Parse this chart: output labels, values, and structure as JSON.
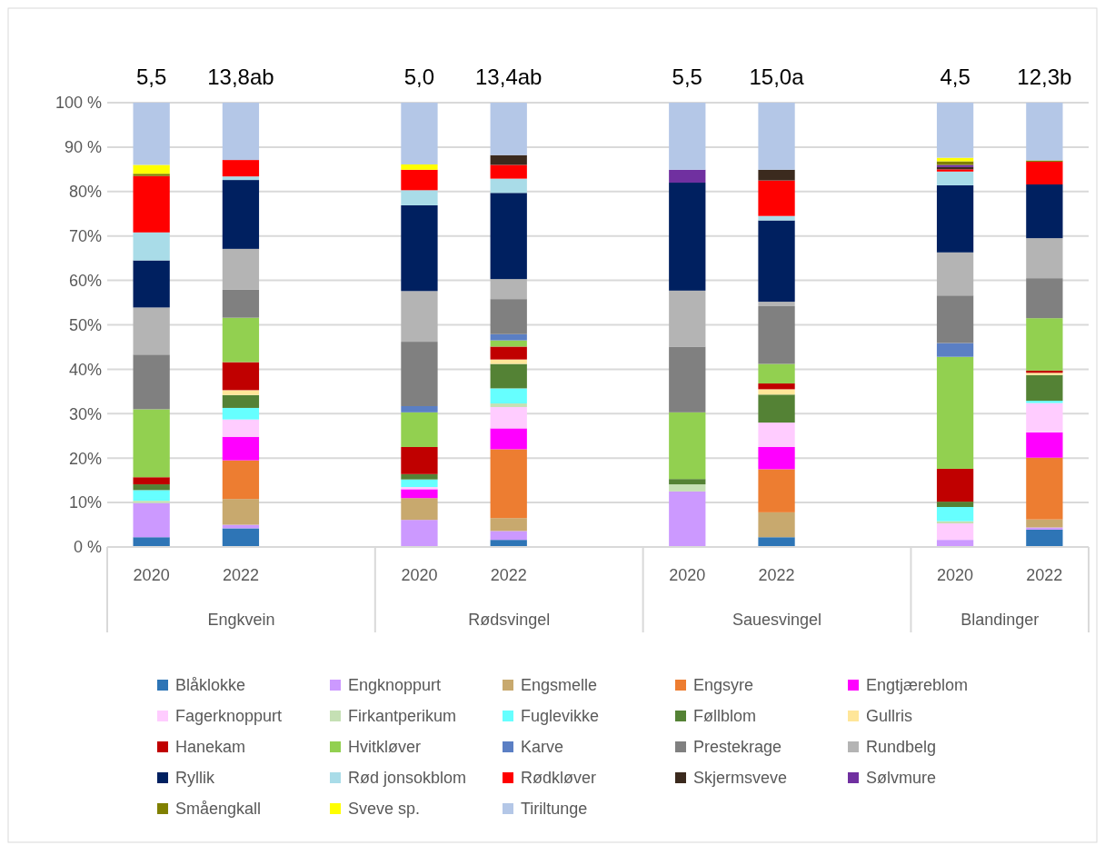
{
  "chart_data": {
    "type": "bar",
    "stacked": true,
    "categories": [
      "2020",
      "2022",
      null,
      "2020",
      "2022",
      null,
      "2020",
      "2022",
      null,
      "2020",
      "2022"
    ],
    "ylim": [
      0,
      100
    ],
    "yticks": [
      {
        "value": 0,
        "label": "0 %"
      },
      {
        "value": 10,
        "label": "10%"
      },
      {
        "value": 20,
        "label": "20%"
      },
      {
        "value": 30,
        "label": "30%"
      },
      {
        "value": 40,
        "label": "40%"
      },
      {
        "value": 50,
        "label": "50%"
      },
      {
        "value": 60,
        "label": "60%"
      },
      {
        "value": 70,
        "label": "70%"
      },
      {
        "value": 80,
        "label": "80%"
      },
      {
        "value": 90,
        "label": "90 %"
      },
      {
        "value": 100,
        "label": "100 %"
      }
    ],
    "grid": "y",
    "legend": "bottom",
    "annotations": [
      "5,5",
      "13,8ab",
      "5,0",
      "13,4ab",
      "5,5",
      "15,0a",
      "4,5",
      "12,3b",
      "Engkvein",
      "Rødsvingel",
      "Sauesvingel",
      "Blandinger"
    ],
    "series": [
      {
        "name": "Blåklokke",
        "color": "#2e75b6",
        "values": [
          2.2,
          4.2,
          null,
          null,
          1.6,
          null,
          null,
          2.2,
          null,
          null,
          3.9
        ]
      },
      {
        "name": "Engknoppurt",
        "color": "#cc99ff",
        "values": [
          7.7,
          0.8,
          null,
          6.1,
          2.0,
          null,
          12.5,
          null,
          null,
          1.6,
          0.5
        ]
      },
      {
        "name": "Engsmelle",
        "color": "#c8a96e",
        "values": [
          null,
          5.8,
          null,
          4.9,
          2.9,
          null,
          null,
          5.6,
          null,
          null,
          1.8
        ]
      },
      {
        "name": "Engsyre",
        "color": "#ed7d31",
        "values": [
          null,
          8.7,
          null,
          null,
          15.5,
          null,
          null,
          9.7,
          null,
          null,
          13.9
        ]
      },
      {
        "name": "Engtjæreblom",
        "color": "#ff00ff",
        "values": [
          null,
          5.3,
          null,
          2.0,
          4.7,
          null,
          null,
          5.0,
          null,
          null,
          5.7
        ]
      },
      {
        "name": "Fagerknoppurt",
        "color": "#ffccff",
        "values": [
          null,
          3.9,
          null,
          0.5,
          4.8,
          null,
          null,
          5.5,
          null,
          3.7,
          6.6
        ]
      },
      {
        "name": "Firkantperikum",
        "color": "#c5e0b4",
        "values": [
          0.5,
          null,
          null,
          null,
          0.8,
          null,
          1.6,
          null,
          null,
          0.5,
          null
        ]
      },
      {
        "name": "Fuglevikke",
        "color": "#66ffff",
        "values": [
          2.4,
          2.6,
          null,
          1.7,
          3.4,
          null,
          null,
          null,
          null,
          3.2,
          0.5
        ]
      },
      {
        "name": "Føllblom",
        "color": "#548235",
        "values": [
          1.3,
          2.9,
          null,
          1.2,
          5.5,
          null,
          1.2,
          6.3,
          null,
          1.2,
          5.8
        ]
      },
      {
        "name": "Gullris",
        "color": "#ffe699",
        "values": [
          null,
          1.1,
          null,
          null,
          1.0,
          null,
          null,
          1.2,
          null,
          null,
          0.5
        ]
      },
      {
        "name": "Hanekam",
        "color": "#c00000",
        "values": [
          1.6,
          6.3,
          null,
          6.1,
          2.9,
          null,
          null,
          1.3,
          null,
          7.4,
          0.5
        ]
      },
      {
        "name": "Hvitkløver",
        "color": "#92d050",
        "values": [
          15.3,
          10.0,
          null,
          7.8,
          1.4,
          null,
          15.0,
          4.4,
          null,
          25.2,
          11.8
        ]
      },
      {
        "name": "Karve",
        "color": "#5b7fc4",
        "values": [
          null,
          null,
          null,
          1.4,
          1.4,
          null,
          null,
          null,
          null,
          3.1,
          null
        ]
      },
      {
        "name": "Prestekrage",
        "color": "#808080",
        "values": [
          12.3,
          6.3,
          null,
          14.5,
          7.9,
          null,
          14.8,
          13.0,
          null,
          10.7,
          9.0
        ]
      },
      {
        "name": "Rundbelg",
        "color": "#b4b4b4",
        "values": [
          10.6,
          9.2,
          null,
          11.4,
          4.5,
          null,
          12.6,
          1.0,
          null,
          9.7,
          9.0
        ]
      },
      {
        "name": "Ryllik",
        "color": "#002060",
        "values": [
          10.6,
          15.5,
          null,
          19.3,
          19.4,
          null,
          24.3,
          18.3,
          null,
          15.1,
          12.1
        ]
      },
      {
        "name": "Rød jonsokblom",
        "color": "#a9dce8",
        "values": [
          6.3,
          0.8,
          null,
          3.4,
          3.2,
          null,
          null,
          1.0,
          null,
          3.1,
          null
        ]
      },
      {
        "name": "Rødkløver",
        "color": "#ff0000",
        "values": [
          12.7,
          3.7,
          null,
          4.6,
          3.1,
          null,
          null,
          8.0,
          null,
          0.5,
          5.1
        ]
      },
      {
        "name": "Skjermsveve",
        "color": "#3b2a1e",
        "values": [
          null,
          null,
          null,
          null,
          2.2,
          null,
          null,
          2.4,
          null,
          0.5,
          null
        ]
      },
      {
        "name": "Sølvmure",
        "color": "#7030a0",
        "values": [
          null,
          null,
          null,
          null,
          null,
          null,
          2.9,
          null,
          null,
          0.5,
          null
        ]
      },
      {
        "name": "Småengkall",
        "color": "#808000",
        "values": [
          0.5,
          null,
          null,
          null,
          null,
          null,
          null,
          null,
          null,
          0.8,
          0.3
        ]
      },
      {
        "name": "Sveve sp.",
        "color": "#ffff00",
        "values": [
          2.0,
          null,
          null,
          1.2,
          null,
          null,
          null,
          null,
          null,
          0.8,
          null
        ]
      },
      {
        "name": "Tiriltunge",
        "color": "#b4c7e7",
        "values": [
          14.0,
          12.9,
          null,
          13.9,
          11.8,
          null,
          15.1,
          15.1,
          null,
          12.4,
          13.0
        ]
      }
    ]
  }
}
